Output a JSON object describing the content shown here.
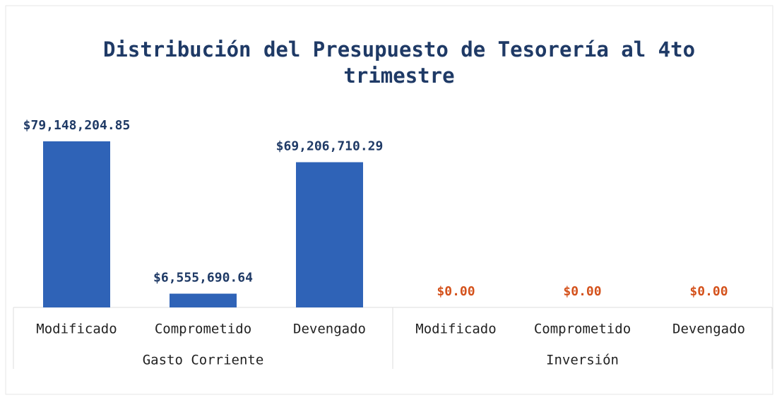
{
  "chart_data": {
    "type": "bar",
    "title": "Distribución del Presupuesto de Tesorería al 4to trimestre",
    "color": "#2f63b7",
    "groups": [
      {
        "name": "Gasto Corriente",
        "label_color": "#1f3a66",
        "categories": [
          "Modificado",
          "Comprometido",
          "Devengado"
        ],
        "values": [
          79148204.85,
          6555690.64,
          69206710.29
        ],
        "value_labels": [
          "$79,148,204.85",
          "$6,555,690.64",
          "$69,206,710.29"
        ]
      },
      {
        "name": "Inversión",
        "label_color": "#d4521c",
        "categories": [
          "Modificado",
          "Comprometido",
          "Devengado"
        ],
        "values": [
          0,
          0,
          0
        ],
        "value_labels": [
          "$0.00",
          "$0.00",
          "$0.00"
        ]
      }
    ]
  }
}
